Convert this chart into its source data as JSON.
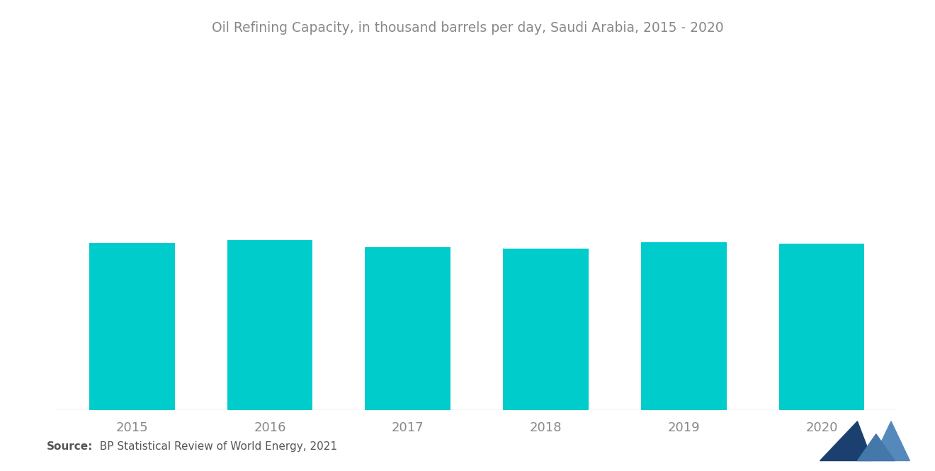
{
  "title": "Oil Refining Capacity, in thousand barrels per day, Saudi Arabia, 2015 - 2020",
  "categories": [
    "2015",
    "2016",
    "2017",
    "2018",
    "2019",
    "2020"
  ],
  "values": [
    2975,
    3015,
    2890,
    2870,
    2980,
    2960
  ],
  "bar_color": "#00CCCC",
  "background_color": "#FFFFFF",
  "title_fontsize": 13.5,
  "tick_fontsize": 13,
  "source_bold": "Source:",
  "source_normal": "  BP Statistical Review of World Energy, 2021",
  "ylim_max": 5200,
  "bar_width": 0.62
}
